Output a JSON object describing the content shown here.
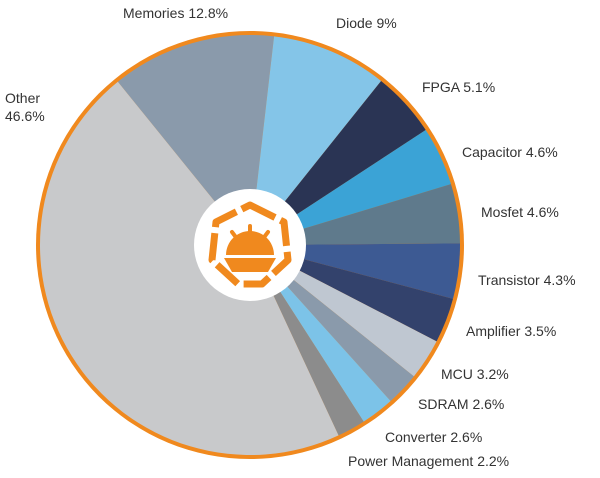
{
  "chart_data": {
    "type": "pie",
    "categories": [
      "Memories",
      "Diode",
      "FPGA",
      "Capacitor",
      "Mosfet",
      "Transistor",
      "Amplifier",
      "MCU",
      "SDRAM",
      "Converter",
      "Power Management",
      "Other"
    ],
    "values": [
      12.8,
      9,
      5.1,
      4.6,
      4.6,
      4.3,
      3.5,
      3.2,
      2.6,
      2.6,
      2.2,
      46.6
    ],
    "value_labels": [
      "12.8%",
      "9%",
      "5.1%",
      "4.6%",
      "4.6%",
      "4.3%",
      "3.5%",
      "3.2%",
      "2.6%",
      "2.6%",
      "2.2%",
      "46.6%"
    ],
    "colors": [
      "#8a9aab",
      "#84c5e8",
      "#2a3454",
      "#3ba3d6",
      "#5f7a8c",
      "#3d5a93",
      "#33426c",
      "#bfc7d1",
      "#8a9aab",
      "#7cc3e8",
      "#8c8c8c",
      "#c8c9cb"
    ]
  }
}
